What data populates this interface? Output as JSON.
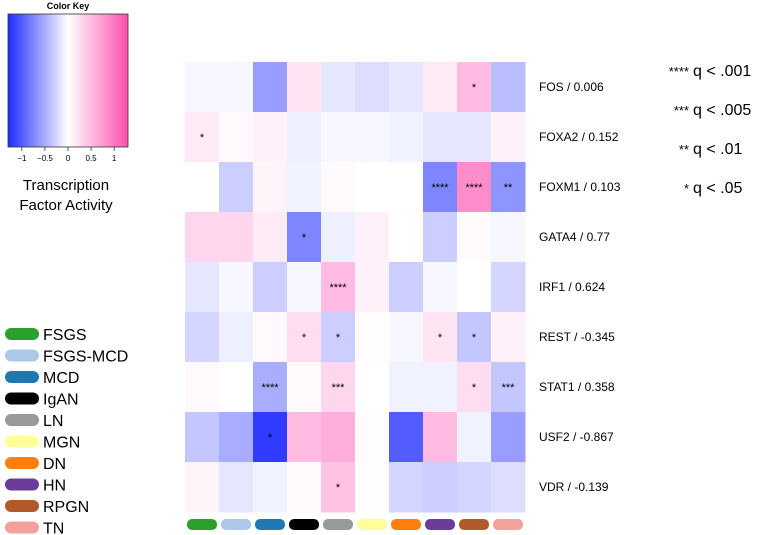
{
  "colors": {
    "negative": "#1f2bff",
    "neutral": "#ffffff",
    "positive": "#ff4fb0"
  },
  "color_key": {
    "title": "Color Key",
    "ticks": [
      "−1",
      "−0.5",
      "0",
      "0.5",
      "1"
    ],
    "tick_values": [
      -1,
      -0.5,
      0,
      0.5,
      1
    ],
    "range": [
      -1.3,
      1.3
    ],
    "caption_line1": "Transcription",
    "caption_line2": "Factor Activity"
  },
  "significance_legend": [
    {
      "stars": "****",
      "label": "q < .001"
    },
    {
      "stars": "***",
      "label": "q < .005"
    },
    {
      "stars": "**",
      "label": "q < .01"
    },
    {
      "stars": "*",
      "label": "q < .05"
    }
  ],
  "disease_legend": [
    {
      "name": "FSGS",
      "color": "#2ca02c"
    },
    {
      "name": "FSGS-MCD",
      "color": "#aec7e8"
    },
    {
      "name": "MCD",
      "color": "#1f77b4"
    },
    {
      "name": "IgAN",
      "color": "#000000"
    },
    {
      "name": "LN",
      "color": "#999999"
    },
    {
      "name": "MGN",
      "color": "#ffff99"
    },
    {
      "name": "DN",
      "color": "#ff7f0e"
    },
    {
      "name": "HN",
      "color": "#6a3d9a"
    },
    {
      "name": "RPGN",
      "color": "#b15928"
    },
    {
      "name": "TN",
      "color": "#f4a09b"
    }
  ],
  "chart_data": {
    "type": "heatmap",
    "columns": [
      "FSGS",
      "FSGS-MCD",
      "MCD",
      "IgAN",
      "LN",
      "MGN",
      "DN",
      "HN",
      "RPGN",
      "TN"
    ],
    "rows": [
      {
        "label": "FOS / 0.006",
        "values": [
          -0.05,
          -0.05,
          -0.6,
          0.2,
          -0.15,
          -0.2,
          -0.15,
          0.15,
          0.5,
          -0.4
        ],
        "stars": [
          "",
          "",
          "",
          "",
          "",
          "",
          "",
          "",
          "*",
          ""
        ]
      },
      {
        "label": "FOXA2 / 0.152",
        "values": [
          0.15,
          0.05,
          0.1,
          -0.1,
          -0.05,
          -0.05,
          -0.08,
          -0.15,
          -0.15,
          0.1
        ],
        "stars": [
          "*",
          "",
          "",
          "",
          "",
          "",
          "",
          "",
          "",
          ""
        ]
      },
      {
        "label": "FOXM1 / 0.103",
        "values": [
          0.0,
          -0.3,
          0.08,
          -0.08,
          0.03,
          0.0,
          0.0,
          -0.75,
          0.85,
          -0.65
        ],
        "stars": [
          "",
          "",
          "",
          "",
          "",
          "",
          "",
          "****",
          "****",
          "**"
        ]
      },
      {
        "label": "GATA4 / 0.77",
        "values": [
          0.3,
          0.3,
          0.15,
          -0.75,
          -0.1,
          0.1,
          0.0,
          -0.3,
          0.03,
          -0.05
        ],
        "stars": [
          "",
          "",
          "",
          "*",
          "",
          "",
          "",
          "",
          "",
          ""
        ]
      },
      {
        "label": "IRF1 / 0.624",
        "values": [
          -0.15,
          -0.05,
          -0.3,
          -0.05,
          0.5,
          0.1,
          -0.3,
          -0.05,
          0.0,
          -0.25
        ],
        "stars": [
          "",
          "",
          "",
          "",
          "****",
          "",
          "",
          "",
          "",
          ""
        ]
      },
      {
        "label": "REST / -0.345",
        "values": [
          -0.25,
          -0.1,
          0.05,
          0.25,
          -0.3,
          0.02,
          -0.05,
          0.2,
          -0.35,
          0.1
        ],
        "stars": [
          "",
          "",
          "",
          "*",
          "*",
          "",
          "",
          "*",
          "*",
          ""
        ]
      },
      {
        "label": "STAT1 / 0.358",
        "values": [
          0.05,
          0.0,
          -0.5,
          0.03,
          0.3,
          0.0,
          -0.08,
          -0.08,
          0.25,
          -0.35
        ],
        "stars": [
          "",
          "",
          "****",
          "",
          "***",
          "",
          "",
          "",
          "*",
          "***"
        ]
      },
      {
        "label": "USF2 / -0.867",
        "values": [
          -0.35,
          -0.5,
          -1.2,
          0.5,
          0.6,
          0.02,
          -1.0,
          0.5,
          -0.08,
          -0.6
        ],
        "stars": [
          "",
          "",
          "*",
          "",
          "",
          "",
          "",
          "",
          "",
          ""
        ]
      },
      {
        "label": "VDR / -0.139",
        "values": [
          0.08,
          -0.15,
          -0.08,
          0.03,
          0.45,
          0.02,
          -0.25,
          -0.3,
          -0.25,
          -0.2
        ],
        "stars": [
          "",
          "",
          "",
          "",
          "*",
          "",
          "",
          "",
          "",
          ""
        ]
      }
    ]
  }
}
